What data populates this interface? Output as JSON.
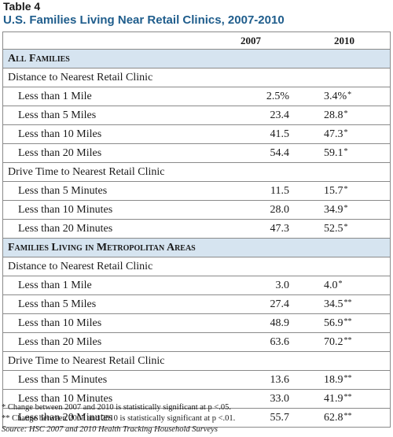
{
  "table_number": "Table 4",
  "title": "U.S. Families Living Near Retail Clinics, 2007-2010",
  "columns": [
    "2007",
    "2010"
  ],
  "rows": [
    {
      "type": "section",
      "label": "All Families"
    },
    {
      "type": "group",
      "label": "Distance to Nearest Retail Clinic"
    },
    {
      "type": "data",
      "label": "Less than 1 Mile",
      "v2007": "2.5%",
      "v2010": "3.4%",
      "mark": "*"
    },
    {
      "type": "data",
      "label": "Less than 5 Miles",
      "v2007": "23.4",
      "v2010": "28.8",
      "mark": "*"
    },
    {
      "type": "data",
      "label": "Less than 10 Miles",
      "v2007": "41.5",
      "v2010": "47.3",
      "mark": "*"
    },
    {
      "type": "data",
      "label": "Less than 20 Miles",
      "v2007": "54.4",
      "v2010": "59.1",
      "mark": "*"
    },
    {
      "type": "group",
      "label": "Drive Time to Nearest Retail Clinic"
    },
    {
      "type": "data",
      "label": "Less than 5 Minutes",
      "v2007": "11.5",
      "v2010": "15.7",
      "mark": "*"
    },
    {
      "type": "data",
      "label": "Less than 10 Minutes",
      "v2007": "28.0",
      "v2010": "34.9",
      "mark": "*"
    },
    {
      "type": "data",
      "label": "Less than 20 Minutes",
      "v2007": "47.3",
      "v2010": "52.5",
      "mark": "*"
    },
    {
      "type": "section",
      "label": "Families Living in Metropolitan Areas"
    },
    {
      "type": "group",
      "label": "Distance to Nearest Retail Clinic"
    },
    {
      "type": "data",
      "label": "Less than 1 Mile",
      "v2007": "3.0",
      "v2010": "4.0",
      "mark": "*"
    },
    {
      "type": "data",
      "label": "Less than 5 Miles",
      "v2007": "27.4",
      "v2010": "34.5",
      "mark": "**"
    },
    {
      "type": "data",
      "label": "Less than 10 Miles",
      "v2007": "48.9",
      "v2010": "56.9",
      "mark": "**"
    },
    {
      "type": "data",
      "label": "Less than 20 Miles",
      "v2007": "63.6",
      "v2010": "70.2",
      "mark": "**"
    },
    {
      "type": "group",
      "label": "Drive Time to Nearest Retail Clinic"
    },
    {
      "type": "data",
      "label": "Less than 5 Minutes",
      "v2007": "13.6",
      "v2010": "18.9",
      "mark": "**"
    },
    {
      "type": "data",
      "label": "Less than 10 Minutes",
      "v2007": "33.0",
      "v2010": "41.9",
      "mark": "**"
    },
    {
      "type": "data",
      "label": "Less than 20 Minutes",
      "v2007": "55.7",
      "v2010": "62.8",
      "mark": "**"
    }
  ],
  "notes": {
    "note1": "* Change between 2007 and 2010 is statistically significant at p <.05.",
    "note2": "** Change between 2007 and 2010 is statistically significant at p <.01.",
    "source": "Source: HSC 2007 and 2010 Health Tracking Household Surveys"
  }
}
